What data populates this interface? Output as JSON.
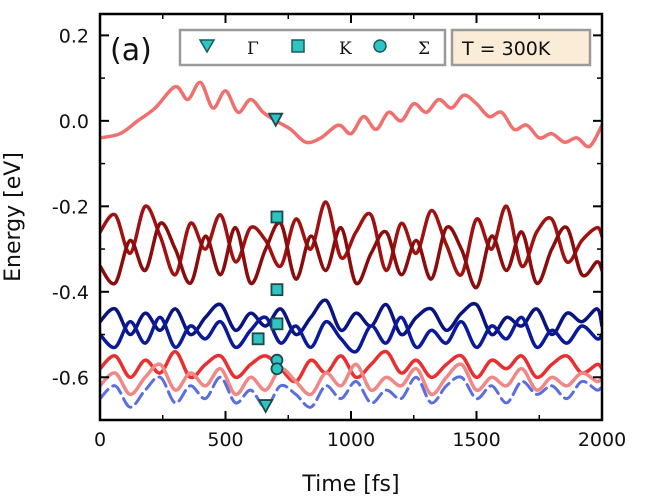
{
  "chart_data": {
    "type": "line",
    "panel_label": "(a)",
    "xlabel": "Time [fs]",
    "ylabel": "Energy [eV]",
    "xlim": [
      0,
      2000
    ],
    "ylim": [
      -0.7,
      0.25
    ],
    "xticks": [
      0,
      500,
      1000,
      1500,
      2000
    ],
    "xtick_labels": [
      "0",
      "500",
      "1000",
      "1500",
      "2000"
    ],
    "yticks": [
      0.2,
      0.0,
      -0.2,
      -0.4,
      -0.6
    ],
    "ytick_labels": [
      "0.2",
      "0.0",
      "-0.2",
      "-0.4",
      "-0.6"
    ],
    "temperature_label": "T = 300K",
    "legend": [
      {
        "symbol": "triangle-down",
        "label": "Γ",
        "color": "#2ec4c4"
      },
      {
        "symbol": "square",
        "label": "K",
        "color": "#2ec4c4"
      },
      {
        "symbol": "circle",
        "label": "Σ",
        "color": "#2ec4c4"
      }
    ],
    "series": [
      {
        "name": "upper red band",
        "color": "#f07070",
        "width": 3.5,
        "x": [
          0,
          80,
          150,
          220,
          300,
          350,
          400,
          450,
          500,
          550,
          600,
          650,
          700,
          760,
          820,
          880,
          950,
          1000,
          1050,
          1100,
          1150,
          1200,
          1250,
          1300,
          1350,
          1400,
          1450,
          1500,
          1550,
          1600,
          1650,
          1700,
          1750,
          1800,
          1850,
          1900,
          1950,
          2000
        ],
        "y": [
          -0.04,
          -0.03,
          0.0,
          0.03,
          0.08,
          0.05,
          0.09,
          0.03,
          0.07,
          0.02,
          0.05,
          0.02,
          0.0,
          -0.02,
          -0.05,
          -0.04,
          -0.01,
          -0.03,
          0.01,
          -0.02,
          0.02,
          0.0,
          0.04,
          0.02,
          0.05,
          0.03,
          0.06,
          0.04,
          0.01,
          0.02,
          -0.02,
          -0.01,
          -0.04,
          -0.03,
          -0.05,
          -0.04,
          -0.06,
          -0.01
        ]
      },
      {
        "name": "dark red band 1",
        "color": "#a01212",
        "width": 3.5,
        "x": [
          0,
          60,
          120,
          180,
          240,
          300,
          360,
          420,
          480,
          540,
          600,
          660,
          720,
          780,
          840,
          900,
          960,
          1020,
          1080,
          1140,
          1200,
          1260,
          1320,
          1380,
          1440,
          1500,
          1560,
          1620,
          1680,
          1740,
          1800,
          1860,
          1920,
          1980,
          2000
        ],
        "y": [
          -0.26,
          -0.22,
          -0.31,
          -0.2,
          -0.27,
          -0.36,
          -0.24,
          -0.3,
          -0.22,
          -0.33,
          -0.25,
          -0.28,
          -0.34,
          -0.23,
          -0.3,
          -0.19,
          -0.32,
          -0.26,
          -0.22,
          -0.35,
          -0.24,
          -0.31,
          -0.21,
          -0.29,
          -0.36,
          -0.23,
          -0.3,
          -0.2,
          -0.34,
          -0.26,
          -0.23,
          -0.33,
          -0.28,
          -0.25,
          -0.27
        ]
      },
      {
        "name": "dark red band 2",
        "color": "#8a0c0c",
        "width": 3.5,
        "x": [
          0,
          60,
          120,
          180,
          240,
          300,
          360,
          420,
          480,
          540,
          600,
          660,
          720,
          780,
          840,
          900,
          960,
          1020,
          1080,
          1140,
          1200,
          1260,
          1320,
          1380,
          1440,
          1500,
          1560,
          1620,
          1680,
          1740,
          1800,
          1860,
          1920,
          1980,
          2000
        ],
        "y": [
          -0.34,
          -0.38,
          -0.28,
          -0.35,
          -0.24,
          -0.3,
          -0.38,
          -0.27,
          -0.36,
          -0.25,
          -0.38,
          -0.3,
          -0.24,
          -0.37,
          -0.27,
          -0.35,
          -0.25,
          -0.38,
          -0.31,
          -0.26,
          -0.36,
          -0.28,
          -0.37,
          -0.25,
          -0.3,
          -0.39,
          -0.27,
          -0.35,
          -0.26,
          -0.38,
          -0.3,
          -0.25,
          -0.36,
          -0.33,
          -0.35
        ]
      },
      {
        "name": "navy band 1",
        "color": "#0a1480",
        "width": 3.5,
        "x": [
          0,
          60,
          120,
          180,
          240,
          300,
          360,
          420,
          480,
          540,
          600,
          660,
          720,
          780,
          840,
          900,
          960,
          1020,
          1080,
          1140,
          1200,
          1260,
          1320,
          1380,
          1440,
          1500,
          1560,
          1620,
          1680,
          1740,
          1800,
          1860,
          1920,
          1980,
          2000
        ],
        "y": [
          -0.47,
          -0.44,
          -0.5,
          -0.45,
          -0.49,
          -0.44,
          -0.5,
          -0.46,
          -0.43,
          -0.49,
          -0.45,
          -0.48,
          -0.44,
          -0.5,
          -0.46,
          -0.42,
          -0.49,
          -0.45,
          -0.48,
          -0.43,
          -0.5,
          -0.46,
          -0.44,
          -0.49,
          -0.45,
          -0.43,
          -0.5,
          -0.46,
          -0.48,
          -0.44,
          -0.5,
          -0.45,
          -0.47,
          -0.44,
          -0.48
        ]
      },
      {
        "name": "navy band 2",
        "color": "#0a1a9a",
        "width": 3.5,
        "x": [
          0,
          60,
          120,
          180,
          240,
          300,
          360,
          420,
          480,
          540,
          600,
          660,
          720,
          780,
          840,
          900,
          960,
          1020,
          1080,
          1140,
          1200,
          1260,
          1320,
          1380,
          1440,
          1500,
          1560,
          1620,
          1680,
          1740,
          1800,
          1860,
          1920,
          1980,
          2000
        ],
        "y": [
          -0.5,
          -0.53,
          -0.47,
          -0.52,
          -0.46,
          -0.53,
          -0.48,
          -0.51,
          -0.47,
          -0.53,
          -0.49,
          -0.46,
          -0.52,
          -0.48,
          -0.53,
          -0.47,
          -0.51,
          -0.54,
          -0.48,
          -0.52,
          -0.46,
          -0.53,
          -0.49,
          -0.52,
          -0.47,
          -0.53,
          -0.48,
          -0.51,
          -0.46,
          -0.53,
          -0.49,
          -0.52,
          -0.48,
          -0.51,
          -0.5
        ]
      },
      {
        "name": "light red band 1",
        "color": "#e83030",
        "width": 3.5,
        "x": [
          0,
          60,
          120,
          180,
          240,
          300,
          360,
          420,
          480,
          540,
          600,
          660,
          720,
          780,
          840,
          900,
          960,
          1020,
          1080,
          1140,
          1200,
          1260,
          1320,
          1380,
          1440,
          1500,
          1560,
          1620,
          1680,
          1740,
          1800,
          1860,
          1920,
          1980,
          2000
        ],
        "y": [
          -0.58,
          -0.55,
          -0.6,
          -0.56,
          -0.59,
          -0.54,
          -0.6,
          -0.57,
          -0.55,
          -0.6,
          -0.57,
          -0.55,
          -0.58,
          -0.61,
          -0.56,
          -0.59,
          -0.55,
          -0.6,
          -0.57,
          -0.54,
          -0.59,
          -0.56,
          -0.6,
          -0.57,
          -0.55,
          -0.6,
          -0.56,
          -0.58,
          -0.55,
          -0.6,
          -0.57,
          -0.55,
          -0.59,
          -0.57,
          -0.58
        ]
      },
      {
        "name": "light red band 2",
        "color": "#f08888",
        "width": 3.5,
        "x": [
          0,
          60,
          120,
          180,
          240,
          300,
          360,
          420,
          480,
          540,
          600,
          660,
          720,
          780,
          840,
          900,
          960,
          1020,
          1080,
          1140,
          1200,
          1260,
          1320,
          1380,
          1440,
          1500,
          1560,
          1620,
          1680,
          1740,
          1800,
          1860,
          1920,
          1980,
          2000
        ],
        "y": [
          -0.62,
          -0.59,
          -0.64,
          -0.6,
          -0.57,
          -0.63,
          -0.59,
          -0.62,
          -0.58,
          -0.64,
          -0.6,
          -0.63,
          -0.58,
          -0.61,
          -0.64,
          -0.59,
          -0.62,
          -0.57,
          -0.63,
          -0.6,
          -0.62,
          -0.58,
          -0.64,
          -0.6,
          -0.57,
          -0.63,
          -0.6,
          -0.62,
          -0.58,
          -0.63,
          -0.6,
          -0.62,
          -0.59,
          -0.61,
          -0.6
        ]
      },
      {
        "name": "blue dashed band",
        "color": "#5a6ee0",
        "width": 3,
        "dashed": true,
        "x": [
          0,
          60,
          120,
          180,
          240,
          300,
          360,
          420,
          480,
          540,
          600,
          660,
          720,
          780,
          840,
          900,
          960,
          1020,
          1080,
          1140,
          1200,
          1260,
          1320,
          1380,
          1440,
          1500,
          1560,
          1620,
          1680,
          1740,
          1800,
          1860,
          1920,
          1980,
          2000
        ],
        "y": [
          -0.65,
          -0.62,
          -0.67,
          -0.63,
          -0.6,
          -0.66,
          -0.62,
          -0.65,
          -0.6,
          -0.66,
          -0.63,
          -0.67,
          -0.62,
          -0.64,
          -0.67,
          -0.62,
          -0.65,
          -0.61,
          -0.66,
          -0.63,
          -0.65,
          -0.6,
          -0.66,
          -0.62,
          -0.6,
          -0.65,
          -0.62,
          -0.66,
          -0.61,
          -0.64,
          -0.62,
          -0.65,
          -0.61,
          -0.63,
          -0.62
        ]
      }
    ],
    "markers": [
      {
        "symbol": "triangle-down",
        "x": 700,
        "y": 0.005
      },
      {
        "symbol": "square",
        "x": 705,
        "y": -0.225
      },
      {
        "symbol": "square",
        "x": 705,
        "y": -0.395
      },
      {
        "symbol": "square",
        "x": 705,
        "y": -0.475
      },
      {
        "symbol": "square",
        "x": 630,
        "y": -0.51
      },
      {
        "symbol": "circle",
        "x": 705,
        "y": -0.56
      },
      {
        "symbol": "circle",
        "x": 705,
        "y": -0.58
      },
      {
        "symbol": "triangle-down",
        "x": 660,
        "y": -0.665
      }
    ]
  }
}
